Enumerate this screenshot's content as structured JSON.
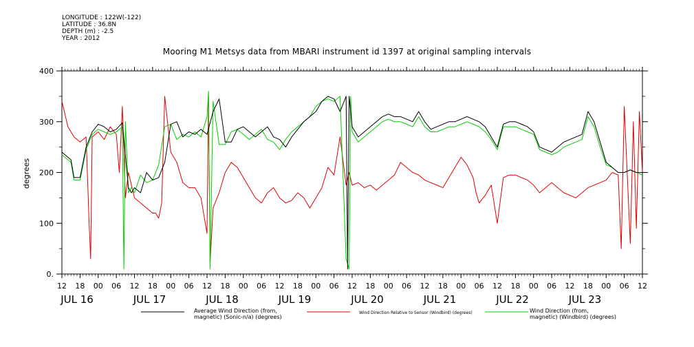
{
  "meta": {
    "longitude": "LONGITUDE : 122W(-122)",
    "latitude": "LATITUDE : 36.8N",
    "depth": "DEPTH (m) : -2.5",
    "year": "YEAR : 2012"
  },
  "chart_data": {
    "type": "line",
    "title": "Mooring M1 Metsys data from MBARI instrument id 1397 at original sampling intervals",
    "ylabel": "degrees",
    "xlabel": "",
    "ylim": [
      0,
      400
    ],
    "yticks": [
      "0.",
      "100",
      "200",
      "300",
      "400"
    ],
    "x_hour_ticks": [
      "12",
      "18",
      "00",
      "06",
      "12",
      "18",
      "00",
      "06",
      "12",
      "18",
      "00",
      "06",
      "12",
      "18",
      "00",
      "06",
      "12",
      "18",
      "00",
      "06",
      "12",
      "18",
      "00",
      "06",
      "12",
      "18",
      "00",
      "06",
      "12",
      "18",
      "00",
      "06",
      "12"
    ],
    "date_labels": [
      "JUL 16",
      "JUL 17",
      "JUL 18",
      "JUL 19",
      "JUL 20",
      "JUL 21",
      "JUL 22",
      "JUL 23"
    ],
    "x_range_hours": [
      0,
      192
    ],
    "series": [
      {
        "name": "Average Wind Direction (from, magnetic) (Sonic-n/a) (degrees)",
        "color": "#000000",
        "x": [
          0,
          3,
          4,
          6,
          8,
          10,
          12,
          14,
          16,
          18,
          20,
          22,
          23,
          24,
          26,
          28,
          30,
          32,
          34,
          36,
          38,
          40,
          42,
          44,
          46,
          48,
          50,
          52,
          54,
          56,
          58,
          60,
          62,
          64,
          66,
          68,
          70,
          72,
          74,
          76,
          78,
          80,
          82,
          84,
          86,
          88,
          90,
          92,
          94,
          94.5,
          95,
          96,
          98,
          100,
          102,
          104,
          106,
          108,
          110,
          112,
          114,
          116,
          118,
          120,
          122,
          124,
          126,
          128,
          130,
          132,
          134,
          136,
          138,
          140,
          142,
          144,
          146,
          148,
          150,
          152,
          154,
          156,
          158,
          160,
          162,
          164,
          166,
          168,
          170,
          172,
          174,
          176,
          178,
          180,
          182,
          184,
          186,
          188,
          190,
          192
        ],
        "values": [
          240,
          225,
          190,
          190,
          250,
          280,
          295,
          290,
          280,
          285,
          298,
          170,
          160,
          170,
          160,
          200,
          185,
          190,
          220,
          295,
          300,
          270,
          280,
          275,
          285,
          275,
          320,
          345,
          260,
          260,
          285,
          290,
          280,
          270,
          280,
          290,
          270,
          265,
          250,
          270,
          285,
          300,
          310,
          320,
          340,
          350,
          345,
          320,
          350,
          10,
          350,
          290,
          270,
          280,
          290,
          300,
          310,
          315,
          310,
          310,
          305,
          300,
          320,
          300,
          285,
          290,
          295,
          300,
          300,
          305,
          310,
          305,
          300,
          290,
          270,
          250,
          295,
          300,
          300,
          295,
          290,
          280,
          250,
          245,
          240,
          250,
          260,
          265,
          270,
          275,
          320,
          300,
          260,
          220,
          210,
          200,
          200,
          205,
          200,
          200
        ]
      },
      {
        "name": "Wind Direction Relative to Sensor (Windbird) (degrees)",
        "color": "#e00000",
        "x": [
          0,
          2,
          4,
          6,
          8,
          9,
          9.5,
          10,
          12,
          14,
          16,
          18,
          19,
          20,
          21,
          22,
          24,
          26,
          28,
          30,
          31,
          32,
          33,
          34,
          36,
          38,
          40,
          42,
          44,
          46,
          48,
          48.5,
          49,
          50,
          52,
          54,
          56,
          58,
          60,
          62,
          64,
          66,
          68,
          70,
          72,
          74,
          76,
          78,
          80,
          82,
          84,
          86,
          88,
          90,
          92,
          94,
          95,
          96,
          98,
          100,
          102,
          104,
          106,
          108,
          110,
          112,
          114,
          116,
          118,
          120,
          122,
          124,
          126,
          128,
          130,
          132,
          134,
          136,
          137,
          138,
          140,
          142,
          144,
          146,
          148,
          150,
          152,
          154,
          156,
          158,
          160,
          162,
          164,
          166,
          168,
          170,
          172,
          174,
          176,
          178,
          180,
          182,
          184,
          185,
          186,
          188,
          189,
          190,
          191,
          192
        ],
        "values": [
          340,
          290,
          270,
          260,
          270,
          100,
          30,
          270,
          280,
          265,
          290,
          275,
          200,
          330,
          150,
          200,
          150,
          140,
          130,
          120,
          120,
          110,
          140,
          350,
          240,
          220,
          180,
          170,
          170,
          150,
          80,
          350,
          20,
          130,
          160,
          200,
          220,
          210,
          190,
          170,
          150,
          140,
          160,
          170,
          150,
          140,
          145,
          160,
          150,
          130,
          150,
          170,
          210,
          195,
          270,
          175,
          200,
          175,
          180,
          170,
          175,
          165,
          175,
          185,
          195,
          220,
          210,
          200,
          195,
          185,
          180,
          175,
          170,
          190,
          210,
          230,
          215,
          190,
          160,
          140,
          155,
          175,
          100,
          190,
          195,
          195,
          190,
          185,
          175,
          160,
          170,
          180,
          170,
          160,
          155,
          150,
          160,
          170,
          175,
          180,
          185,
          200,
          195,
          50,
          330,
          60,
          300,
          90,
          320,
          200
        ]
      },
      {
        "name": "Wind Direction (from, magnetic) (Windbird) (degrees)",
        "color": "#00d000",
        "x": [
          0,
          3,
          4,
          6,
          8,
          10,
          12,
          14,
          16,
          18,
          20,
          20.5,
          21,
          22,
          23,
          24,
          26,
          28,
          30,
          32,
          34,
          36,
          38,
          40,
          42,
          44,
          46,
          48,
          48.5,
          49,
          50,
          52,
          54,
          56,
          58,
          60,
          62,
          64,
          66,
          68,
          70,
          72,
          74,
          76,
          78,
          80,
          82,
          84,
          86,
          88,
          90,
          92,
          94,
          95,
          95.5,
          96,
          98,
          100,
          102,
          104,
          106,
          108,
          110,
          112,
          114,
          116,
          118,
          120,
          122,
          124,
          126,
          128,
          130,
          132,
          134,
          136,
          138,
          140,
          142,
          144,
          146,
          148,
          150,
          152,
          154,
          156,
          158,
          160,
          162,
          164,
          166,
          168,
          170,
          172,
          174,
          176,
          178,
          180,
          182,
          184,
          186,
          188,
          190,
          192
        ],
        "values": [
          235,
          220,
          185,
          185,
          245,
          275,
          285,
          280,
          275,
          280,
          290,
          10,
          300,
          160,
          170,
          160,
          195,
          180,
          185,
          215,
          290,
          295,
          265,
          275,
          270,
          280,
          270,
          310,
          360,
          10,
          340,
          255,
          255,
          280,
          285,
          275,
          265,
          275,
          285,
          265,
          260,
          245,
          265,
          280,
          290,
          300,
          310,
          330,
          340,
          345,
          340,
          350,
          30,
          10,
          350,
          280,
          260,
          270,
          280,
          290,
          300,
          305,
          300,
          300,
          295,
          290,
          310,
          290,
          280,
          280,
          285,
          290,
          290,
          295,
          300,
          295,
          290,
          280,
          265,
          245,
          290,
          290,
          290,
          285,
          280,
          275,
          245,
          240,
          235,
          240,
          250,
          255,
          260,
          265,
          310,
          290,
          250,
          215,
          210,
          200,
          200,
          205,
          200,
          195
        ]
      }
    ]
  },
  "legend": {
    "avg": [
      "Average Wind Direction (from,",
      "magnetic) (Sonic-n/a) (degrees)"
    ],
    "rel": "Wind Direction Relative to Sensor (Windbird) (degrees)",
    "wind": [
      "Wind Direction (from,",
      "magnetic) (Windbird) (degrees)"
    ]
  }
}
